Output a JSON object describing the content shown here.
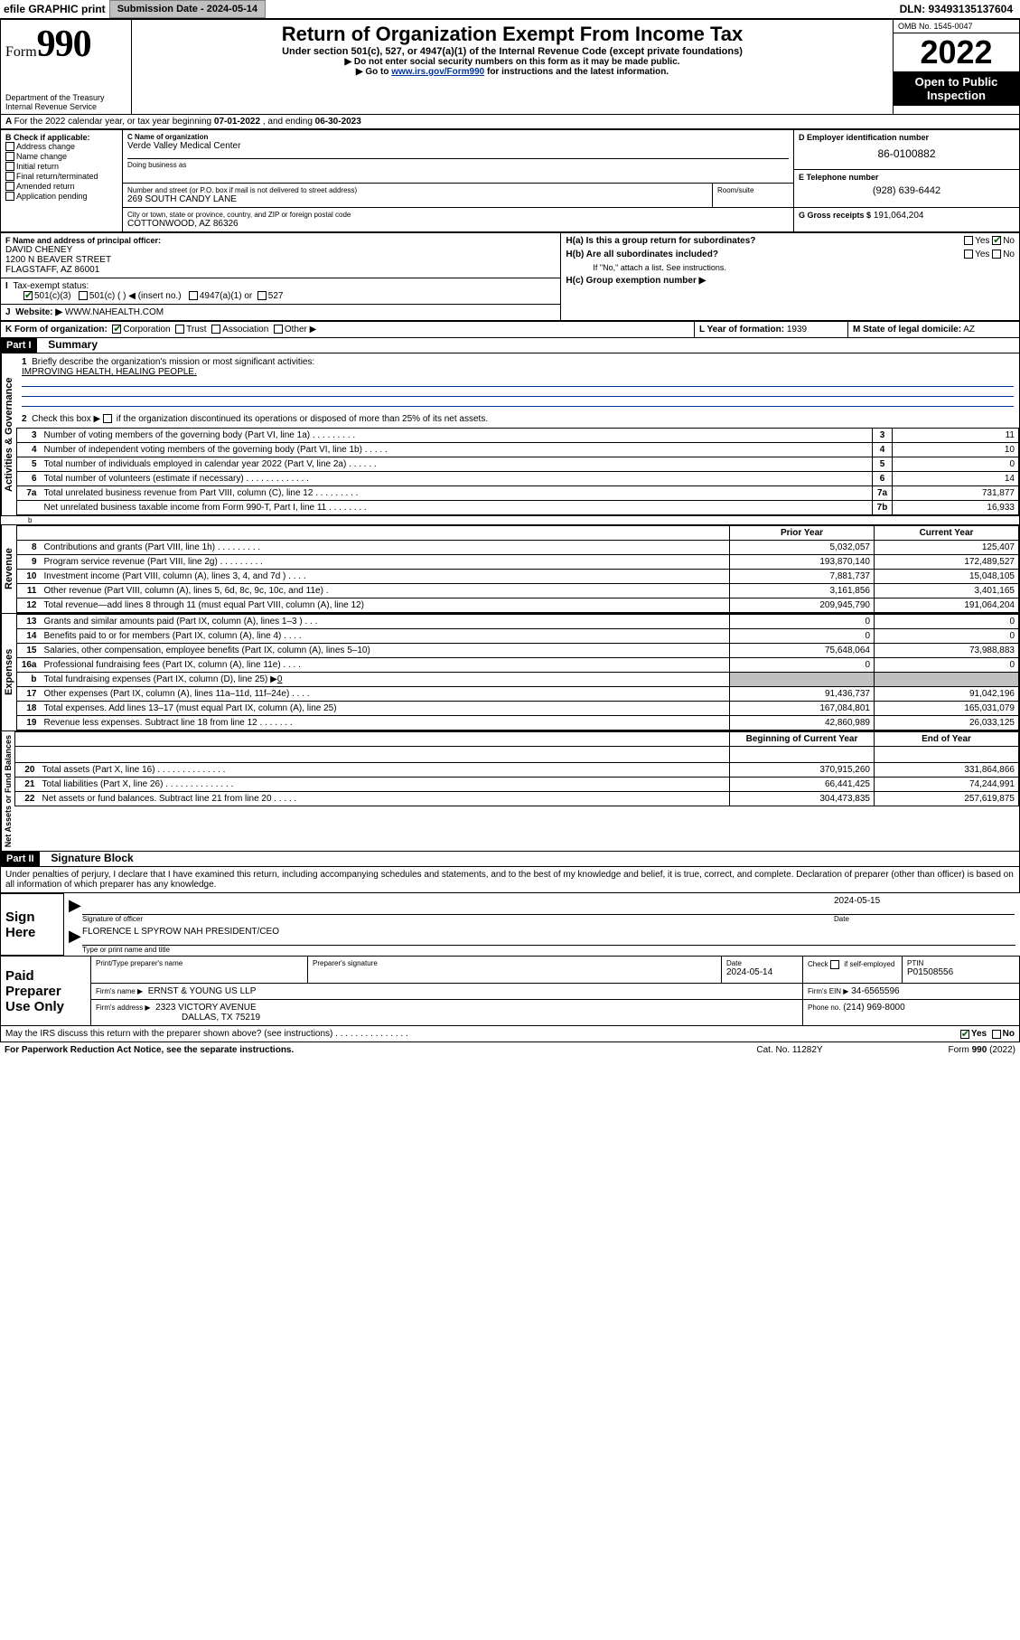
{
  "topbar": {
    "efile_label": "efile GRAPHIC print",
    "submission_label": "Submission Date - 2024-05-14",
    "dln_label": "DLN: 93493135137604"
  },
  "header": {
    "form_word": "Form",
    "form_num": "990",
    "dept": "Department of the Treasury",
    "irs": "Internal Revenue Service",
    "title": "Return of Organization Exempt From Income Tax",
    "subtitle": "Under section 501(c), 527, or 4947(a)(1) of the Internal Revenue Code (except private foundations)",
    "note1": "▶ Do not enter social security numbers on this form as it may be made public.",
    "note2_pre": "▶ Go to ",
    "note2_link": "www.irs.gov/Form990",
    "note2_post": " for instructions and the latest information.",
    "omb": "OMB No. 1545-0047",
    "year": "2022",
    "openpub": "Open to Public Inspection"
  },
  "periodA": {
    "label_pre": "For the 2022 calendar year, or tax year beginning ",
    "begin": "07-01-2022",
    "mid": " , and ending ",
    "end": "06-30-2023"
  },
  "boxB": {
    "heading": "B Check if applicable:",
    "items": [
      "Address change",
      "Name change",
      "Initial return",
      "Final return/terminated",
      "Amended return",
      "Application pending"
    ]
  },
  "boxC": {
    "name_lbl": "C Name of organization",
    "name": "Verde Valley Medical Center",
    "dba_lbl": "Doing business as",
    "dba": "",
    "street_lbl": "Number and street (or P.O. box if mail is not delivered to street address)",
    "street": "269 SOUTH CANDY LANE",
    "room_lbl": "Room/suite",
    "city_lbl": "City or town, state or province, country, and ZIP or foreign postal code",
    "city": "COTTONWOOD, AZ  86326"
  },
  "boxD": {
    "lbl": "D Employer identification number",
    "val": "86-0100882"
  },
  "boxE": {
    "lbl": "E Telephone number",
    "val": "(928) 639-6442"
  },
  "boxG": {
    "lbl": "G Gross receipts $",
    "val": "191,064,204"
  },
  "boxF": {
    "lbl": "F Name and address of principal officer:",
    "name": "DAVID CHENEY",
    "addr1": "1200 N BEAVER STREET",
    "addr2": "FLAGSTAFF, AZ  86001"
  },
  "boxH": {
    "a_lbl": "H(a)  Is this a group return for subordinates?",
    "a_yes": "Yes",
    "a_no": "No",
    "b_lbl": "H(b)  Are all subordinates included?",
    "b_yes": "Yes",
    "b_no": "No",
    "note": "If \"No,\" attach a list. See instructions.",
    "c_lbl": "H(c)  Group exemption number ▶"
  },
  "lineI": {
    "lbl": "Tax-exempt status:",
    "o1": "501(c)(3)",
    "o2": "501(c) (  ) ◀ (insert no.)",
    "o3": "4947(a)(1) or",
    "o4": "527"
  },
  "lineJ": {
    "lbl": "Website: ▶",
    "val": "WWW.NAHEALTH.COM"
  },
  "lineK": {
    "lbl": "K Form of organization:",
    "o1": "Corporation",
    "o2": "Trust",
    "o3": "Association",
    "o4": "Other ▶"
  },
  "lineL": {
    "lbl": "L Year of formation:",
    "val": "1939"
  },
  "lineM": {
    "lbl": "M State of legal domicile:",
    "val": "AZ"
  },
  "part1": {
    "label": "Part I",
    "title": "Summary",
    "vert_labels": [
      "Activities & Governance",
      "Revenue",
      "Expenses",
      "Net Assets or Fund Balances"
    ],
    "line1_lbl": "Briefly describe the organization's mission or most significant activities:",
    "line1_text": "IMPROVING HEALTH, HEALING PEOPLE.",
    "line2_lbl": "Check this box ▶",
    "line2_post": "if the organization discontinued its operations or disposed of more than 25% of its net assets.",
    "rows_gov": [
      {
        "n": "3",
        "t": "Number of voting members of the governing body (Part VI, line 1a)   .    .    .    .    .    .    .    .    .",
        "box": "3",
        "v": "11"
      },
      {
        "n": "4",
        "t": "Number of independent voting members of the governing body (Part VI, line 1b)   .    .    .    .    .",
        "box": "4",
        "v": "10"
      },
      {
        "n": "5",
        "t": "Total number of individuals employed in calendar year 2022 (Part V, line 2a)   .    .    .    .    .    .",
        "box": "5",
        "v": "0"
      },
      {
        "n": "6",
        "t": "Total number of volunteers (estimate if necessary)   .    .    .    .    .    .    .    .    .    .    .    .    .",
        "box": "6",
        "v": "14"
      },
      {
        "n": "7a",
        "t": "Total unrelated business revenue from Part VIII, column (C), line 12   .    .    .    .    .    .    .    .    .",
        "box": "7a",
        "v": "731,877"
      },
      {
        "n": "",
        "t": "Net unrelated business taxable income from Form 990-T, Part I, line 11   .    .    .    .    .    .    .    .",
        "box": "7b",
        "v": "16,933"
      }
    ],
    "header_prior": "Prior Year",
    "header_curr": "Current Year",
    "rows_rev": [
      {
        "n": "8",
        "t": "Contributions and grants (Part VIII, line 1h)   .    .    .    .    .    .    .    .    .",
        "p": "5,032,057",
        "c": "125,407"
      },
      {
        "n": "9",
        "t": "Program service revenue (Part VIII, line 2g)   .    .    .    .    .    .    .    .    .",
        "p": "193,870,140",
        "c": "172,489,527"
      },
      {
        "n": "10",
        "t": "Investment income (Part VIII, column (A), lines 3, 4, and 7d )   .    .    .    .",
        "p": "7,881,737",
        "c": "15,048,105"
      },
      {
        "n": "11",
        "t": "Other revenue (Part VIII, column (A), lines 5, 6d, 8c, 9c, 10c, and 11e)   .",
        "p": "3,161,856",
        "c": "3,401,165"
      },
      {
        "n": "12",
        "t": "Total revenue—add lines 8 through 11 (must equal Part VIII, column (A), line 12)",
        "p": "209,945,790",
        "c": "191,064,204"
      }
    ],
    "rows_exp": [
      {
        "n": "13",
        "t": "Grants and similar amounts paid (Part IX, column (A), lines 1–3 )   .    .    .",
        "p": "0",
        "c": "0"
      },
      {
        "n": "14",
        "t": "Benefits paid to or for members (Part IX, column (A), line 4)   .    .    .    .",
        "p": "0",
        "c": "0"
      },
      {
        "n": "15",
        "t": "Salaries, other compensation, employee benefits (Part IX, column (A), lines 5–10)",
        "p": "75,648,064",
        "c": "73,988,883"
      },
      {
        "n": "16a",
        "t": "Professional fundraising fees (Part IX, column (A), line 11e)   .    .    .    .",
        "p": "0",
        "c": "0"
      }
    ],
    "row16b_lbl": "Total fundraising expenses (Part IX, column (D), line 25) ▶",
    "row16b_val": "0",
    "rows_exp2": [
      {
        "n": "17",
        "t": "Other expenses (Part IX, column (A), lines 11a–11d, 11f–24e)   .    .    .    .",
        "p": "91,436,737",
        "c": "91,042,196"
      },
      {
        "n": "18",
        "t": "Total expenses. Add lines 13–17 (must equal Part IX, column (A), line 25)",
        "p": "167,084,801",
        "c": "165,031,079"
      },
      {
        "n": "19",
        "t": "Revenue less expenses. Subtract line 18 from line 12   .    .    .    .    .    .    .",
        "p": "42,860,989",
        "c": "26,033,125"
      }
    ],
    "header_begin": "Beginning of Current Year",
    "header_end": "End of Year",
    "rows_net": [
      {
        "n": "20",
        "t": "Total assets (Part X, line 16)   .    .    .    .    .    .    .    .    .    .    .    .    .    .",
        "p": "370,915,260",
        "c": "331,864,866"
      },
      {
        "n": "21",
        "t": "Total liabilities (Part X, line 26)   .    .    .    .    .    .    .    .    .    .    .    .    .    .",
        "p": "66,441,425",
        "c": "74,244,991"
      },
      {
        "n": "22",
        "t": "Net assets or fund balances. Subtract line 21 from line 20   .    .    .    .    .",
        "p": "304,473,835",
        "c": "257,619,875"
      }
    ]
  },
  "part2": {
    "label": "Part II",
    "title": "Signature Block",
    "declaration": "Under penalties of perjury, I declare that I have examined this return, including accompanying schedules and statements, and to the best of my knowledge and belief, it is true, correct, and complete. Declaration of preparer (other than officer) is based on all information of which preparer has any knowledge.",
    "sign_here": "Sign Here",
    "sig_date": "2024-05-15",
    "sig_officer_lbl": "Signature of officer",
    "date_lbl": "Date",
    "officer_name": "FLORENCE L SPYROW NAH PRESIDENT/CEO",
    "officer_name_lbl": "Type or print name and title",
    "paid_prep": "Paid Preparer Use Only",
    "prep_name_lbl": "Print/Type preparer's name",
    "prep_sig_lbl": "Preparer's signature",
    "prep_date_lbl": "Date",
    "prep_date": "2024-05-14",
    "check_lbl": "Check",
    "self_emp": "if self-employed",
    "ptin_lbl": "PTIN",
    "ptin": "P01508556",
    "firm_name_lbl": "Firm's name    ▶",
    "firm_name": "ERNST & YOUNG US LLP",
    "firm_ein_lbl": "Firm's EIN ▶",
    "firm_ein": "34-6565596",
    "firm_addr_lbl": "Firm's address ▶",
    "firm_addr1": "2323 VICTORY AVENUE",
    "firm_addr2": "DALLAS, TX  75219",
    "phone_lbl": "Phone no.",
    "phone": "(214) 969-8000",
    "discuss": "May the IRS discuss this return with the preparer shown above? (see instructions)    .    .    .    .    .    .    .    .    .    .    .    .    .    .    .",
    "discuss_yes": "Yes",
    "discuss_no": "No"
  },
  "footer": {
    "left": "For Paperwork Reduction Act Notice, see the separate instructions.",
    "mid": "Cat. No. 11282Y",
    "right": "Form 990 (2022)"
  }
}
